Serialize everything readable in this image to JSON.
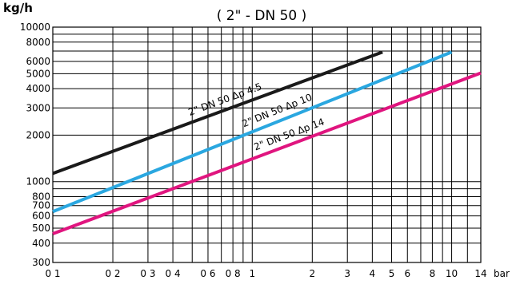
{
  "chart_data": {
    "type": "line",
    "title": "( 2\" - DN 50 )",
    "ylabel": "kg/h",
    "x_unit": "bar",
    "x_scale": "log",
    "y_scale": "log",
    "xlim": [
      0.1,
      14
    ],
    "ylim": [
      300,
      10000
    ],
    "grid": true,
    "x_ticks": [
      {
        "value": 0.1,
        "label": "0 1"
      },
      {
        "value": 0.2,
        "label": "0 2"
      },
      {
        "value": 0.3,
        "label": "0 3"
      },
      {
        "value": 0.4,
        "label": "0 4"
      },
      {
        "value": 0.6,
        "label": "0 6"
      },
      {
        "value": 0.8,
        "label": "0 8"
      },
      {
        "value": 1,
        "label": "1"
      },
      {
        "value": 2,
        "label": "2"
      },
      {
        "value": 3,
        "label": "3"
      },
      {
        "value": 4,
        "label": "4"
      },
      {
        "value": 5,
        "label": "5"
      },
      {
        "value": 6,
        "label": "6"
      },
      {
        "value": 8,
        "label": "8"
      },
      {
        "value": 10,
        "label": "10"
      },
      {
        "value": 14,
        "label": "14"
      }
    ],
    "x_minor_grid": [
      0.5,
      0.7,
      0.9,
      7,
      9,
      12
    ],
    "y_ticks": [
      {
        "value": 300,
        "label": "300"
      },
      {
        "value": 400,
        "label": "400"
      },
      {
        "value": 500,
        "label": "500"
      },
      {
        "value": 600,
        "label": "600"
      },
      {
        "value": 700,
        "label": "700"
      },
      {
        "value": 800,
        "label": "800"
      },
      {
        "value": 1000,
        "label": "1000"
      },
      {
        "value": 2000,
        "label": "2000"
      },
      {
        "value": 3000,
        "label": "3000"
      },
      {
        "value": 4000,
        "label": "4000"
      },
      {
        "value": 5000,
        "label": "5000"
      },
      {
        "value": 6000,
        "label": "6000"
      },
      {
        "value": 8000,
        "label": "8000"
      },
      {
        "value": 10000,
        "label": "10000"
      }
    ],
    "y_minor_grid": [
      900,
      7000,
      9000
    ],
    "series": [
      {
        "name": "2\"  DN 50  Δp 4.5",
        "color": "#1a1a1a",
        "x": [
          0.1,
          4.5
        ],
        "y": [
          1130,
          6900
        ]
      },
      {
        "name": "2\"  DN 50  Δp 10",
        "color": "#2aa7e0",
        "x": [
          0.1,
          10
        ],
        "y": [
          640,
          6900
        ]
      },
      {
        "name": "2\"  DN 50  Δp 14",
        "color": "#e0157f",
        "x": [
          0.1,
          14
        ],
        "y": [
          460,
          5050
        ]
      }
    ]
  }
}
